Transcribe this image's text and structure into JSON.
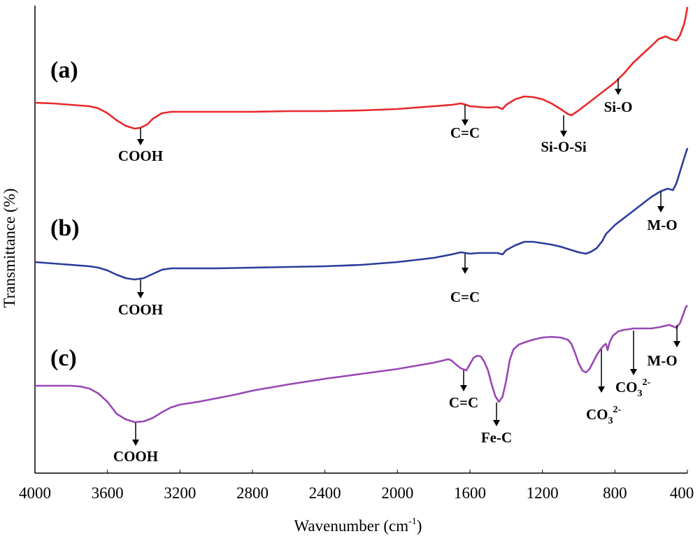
{
  "chart_data": {
    "type": "line",
    "title": "",
    "xlabel": "Wavenumber (cm",
    "xlabel_sup": "-1",
    "xlabel_close": ")",
    "ylabel": "Transmittance (%)",
    "xlim": [
      4000,
      400
    ],
    "x_reversed": true,
    "grid": false,
    "ticks": [
      "4000",
      "3600",
      "3200",
      "2800",
      "2400",
      "2000",
      "1600",
      "1200",
      "800",
      "400"
    ],
    "series": [
      {
        "name": "(a)",
        "color": "#e8282c",
        "points": [
          [
            4000,
            147
          ],
          [
            3900,
            148
          ],
          [
            3800,
            150
          ],
          [
            3700,
            152
          ],
          [
            3650,
            155
          ],
          [
            3600,
            162
          ],
          [
            3550,
            172
          ],
          [
            3500,
            180
          ],
          [
            3450,
            184
          ],
          [
            3420,
            183
          ],
          [
            3380,
            178
          ],
          [
            3350,
            170
          ],
          [
            3300,
            162
          ],
          [
            3250,
            160
          ],
          [
            3200,
            160
          ],
          [
            3000,
            160
          ],
          [
            2800,
            160
          ],
          [
            2600,
            159
          ],
          [
            2400,
            159
          ],
          [
            2200,
            158
          ],
          [
            2000,
            156
          ],
          [
            1800,
            152
          ],
          [
            1700,
            150
          ],
          [
            1650,
            148
          ],
          [
            1620,
            150
          ],
          [
            1600,
            152
          ],
          [
            1550,
            153
          ],
          [
            1500,
            154
          ],
          [
            1450,
            153
          ],
          [
            1420,
            156
          ],
          [
            1400,
            150
          ],
          [
            1350,
            142
          ],
          [
            1300,
            138
          ],
          [
            1250,
            139
          ],
          [
            1200,
            142
          ],
          [
            1150,
            148
          ],
          [
            1100,
            156
          ],
          [
            1060,
            163
          ],
          [
            1040,
            165
          ],
          [
            1000,
            158
          ],
          [
            950,
            148
          ],
          [
            900,
            138
          ],
          [
            850,
            128
          ],
          [
            800,
            118
          ],
          [
            750,
            105
          ],
          [
            700,
            90
          ],
          [
            650,
            78
          ],
          [
            600,
            66
          ],
          [
            560,
            56
          ],
          [
            520,
            52
          ],
          [
            490,
            56
          ],
          [
            460,
            58
          ],
          [
            440,
            50
          ],
          [
            420,
            36
          ],
          [
            410,
            25
          ],
          [
            400,
            10
          ]
        ]
      },
      {
        "name": "(b)",
        "color": "#2b3c9c",
        "points": [
          [
            4000,
            375
          ],
          [
            3900,
            377
          ],
          [
            3800,
            379
          ],
          [
            3700,
            381
          ],
          [
            3650,
            383
          ],
          [
            3600,
            387
          ],
          [
            3550,
            393
          ],
          [
            3500,
            398
          ],
          [
            3450,
            400
          ],
          [
            3400,
            398
          ],
          [
            3350,
            392
          ],
          [
            3300,
            386
          ],
          [
            3250,
            384
          ],
          [
            3200,
            384
          ],
          [
            3000,
            384
          ],
          [
            2800,
            383
          ],
          [
            2600,
            382
          ],
          [
            2400,
            381
          ],
          [
            2200,
            379
          ],
          [
            2000,
            375
          ],
          [
            1800,
            369
          ],
          [
            1700,
            364
          ],
          [
            1650,
            361
          ],
          [
            1600,
            363
          ],
          [
            1550,
            362
          ],
          [
            1500,
            362
          ],
          [
            1450,
            362
          ],
          [
            1420,
            364
          ],
          [
            1400,
            358
          ],
          [
            1350,
            351
          ],
          [
            1300,
            346
          ],
          [
            1250,
            346
          ],
          [
            1200,
            348
          ],
          [
            1150,
            350
          ],
          [
            1100,
            353
          ],
          [
            1050,
            357
          ],
          [
            1000,
            361
          ],
          [
            960,
            363
          ],
          [
            930,
            360
          ],
          [
            900,
            355
          ],
          [
            870,
            345
          ],
          [
            850,
            335
          ],
          [
            800,
            322
          ],
          [
            750,
            312
          ],
          [
            700,
            302
          ],
          [
            650,
            292
          ],
          [
            600,
            282
          ],
          [
            550,
            274
          ],
          [
            510,
            270
          ],
          [
            480,
            272
          ],
          [
            460,
            262
          ],
          [
            440,
            245
          ],
          [
            420,
            228
          ],
          [
            410,
            220
          ],
          [
            400,
            212
          ]
        ]
      },
      {
        "name": "(c)",
        "color": "#9848b4",
        "points": [
          [
            4000,
            552
          ],
          [
            3900,
            552
          ],
          [
            3800,
            552
          ],
          [
            3750,
            553
          ],
          [
            3700,
            556
          ],
          [
            3650,
            563
          ],
          [
            3600,
            575
          ],
          [
            3550,
            592
          ],
          [
            3500,
            600
          ],
          [
            3450,
            604
          ],
          [
            3400,
            603
          ],
          [
            3350,
            598
          ],
          [
            3300,
            590
          ],
          [
            3250,
            583
          ],
          [
            3200,
            579
          ],
          [
            3100,
            575
          ],
          [
            3000,
            570
          ],
          [
            2900,
            565
          ],
          [
            2800,
            559
          ],
          [
            2600,
            550
          ],
          [
            2400,
            542
          ],
          [
            2200,
            535
          ],
          [
            2000,
            528
          ],
          [
            1800,
            519
          ],
          [
            1750,
            516
          ],
          [
            1720,
            514
          ],
          [
            1700,
            516
          ],
          [
            1680,
            521
          ],
          [
            1650,
            527
          ],
          [
            1620,
            530
          ],
          [
            1600,
            521
          ],
          [
            1580,
            512
          ],
          [
            1560,
            509
          ],
          [
            1540,
            510
          ],
          [
            1520,
            518
          ],
          [
            1500,
            530
          ],
          [
            1480,
            550
          ],
          [
            1460,
            567
          ],
          [
            1440,
            575
          ],
          [
            1420,
            568
          ],
          [
            1400,
            545
          ],
          [
            1380,
            515
          ],
          [
            1360,
            500
          ],
          [
            1330,
            493
          ],
          [
            1300,
            490
          ],
          [
            1250,
            486
          ],
          [
            1200,
            483
          ],
          [
            1150,
            482
          ],
          [
            1100,
            483
          ],
          [
            1060,
            486
          ],
          [
            1040,
            492
          ],
          [
            1020,
            505
          ],
          [
            1000,
            520
          ],
          [
            980,
            530
          ],
          [
            960,
            533
          ],
          [
            940,
            528
          ],
          [
            920,
            518
          ],
          [
            900,
            508
          ],
          [
            880,
            500
          ],
          [
            860,
            494
          ],
          [
            850,
            492
          ],
          [
            840,
            501
          ],
          [
            830,
            490
          ],
          [
            810,
            480
          ],
          [
            780,
            474
          ],
          [
            750,
            472
          ],
          [
            720,
            471
          ],
          [
            700,
            470
          ],
          [
            650,
            470
          ],
          [
            600,
            470
          ],
          [
            550,
            468
          ],
          [
            520,
            466
          ],
          [
            500,
            465
          ],
          [
            480,
            467
          ],
          [
            460,
            469
          ],
          [
            440,
            462
          ],
          [
            420,
            448
          ],
          [
            410,
            440
          ],
          [
            400,
            437
          ]
        ]
      }
    ],
    "panel_labels": [
      "(a)",
      "(b)",
      "(c)"
    ],
    "annotations": [
      {
        "text": "COOH",
        "sup": "",
        "sub": "",
        "series": "(a)"
      },
      {
        "text": "C=C",
        "sup": "",
        "sub": "",
        "series": "(a)"
      },
      {
        "text": "Si-O-Si",
        "sup": "",
        "sub": "",
        "series": "(a)"
      },
      {
        "text": "Si-O",
        "sup": "",
        "sub": "",
        "series": "(a)"
      },
      {
        "text": "COOH",
        "sup": "",
        "sub": "",
        "series": "(b)"
      },
      {
        "text": "C=C",
        "sup": "",
        "sub": "",
        "series": "(b)"
      },
      {
        "text": "M-O",
        "sup": "",
        "sub": "",
        "series": "(b)"
      },
      {
        "text": "COOH",
        "sup": "",
        "sub": "",
        "series": "(c)"
      },
      {
        "text": "C=C",
        "sup": "",
        "sub": "",
        "series": "(c)"
      },
      {
        "text": "Fe-C",
        "sup": "",
        "sub": "",
        "series": "(c)"
      },
      {
        "text": "CO",
        "sub": "3",
        "sup": "2-",
        "series": "(c)"
      },
      {
        "text": "CO",
        "sub": "3",
        "sup": "2-",
        "series": "(c)"
      },
      {
        "text": "M-O",
        "sup": "",
        "sub": "",
        "series": "(c)"
      }
    ]
  }
}
